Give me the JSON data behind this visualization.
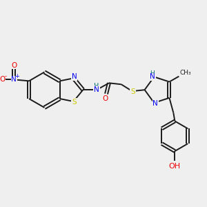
{
  "background_color": "#efefef",
  "bond_color": "#1a1a1a",
  "atom_colors": {
    "S": "#cccc00",
    "N": "#0000ee",
    "O": "#ee0000",
    "H": "#007070",
    "C": "#1a1a1a"
  },
  "figsize": [
    3.0,
    3.0
  ],
  "dpi": 100
}
